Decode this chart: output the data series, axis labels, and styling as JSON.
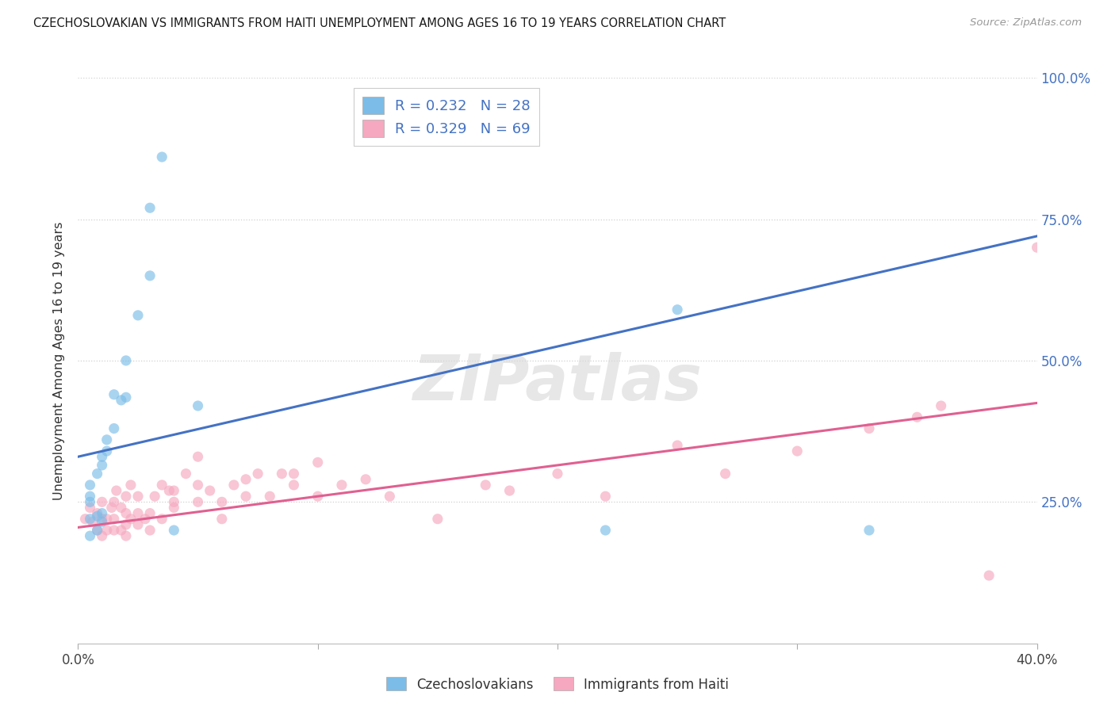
{
  "title": "CZECHOSLOVAKIAN VS IMMIGRANTS FROM HAITI UNEMPLOYMENT AMONG AGES 16 TO 19 YEARS CORRELATION CHART",
  "source": "Source: ZipAtlas.com",
  "ylabel": "Unemployment Among Ages 16 to 19 years",
  "blue_label": "Czechoslovakians",
  "pink_label": "Immigrants from Haiti",
  "blue_R": 0.232,
  "blue_N": 28,
  "pink_R": 0.329,
  "pink_N": 69,
  "blue_color": "#7bbde8",
  "pink_color": "#f5a8bf",
  "blue_line_color": "#4472c4",
  "pink_line_color": "#e06090",
  "watermark": "ZIPatlas",
  "background_color": "#ffffff",
  "grid_color": "#d0d0d0",
  "blue_scatter_x": [
    0.005,
    0.008,
    0.01,
    0.005,
    0.008,
    0.01,
    0.005,
    0.005,
    0.005,
    0.008,
    0.01,
    0.01,
    0.012,
    0.012,
    0.015,
    0.015,
    0.018,
    0.02,
    0.02,
    0.025,
    0.03,
    0.03,
    0.035,
    0.04,
    0.05,
    0.22,
    0.25,
    0.33
  ],
  "blue_scatter_y": [
    0.19,
    0.2,
    0.215,
    0.22,
    0.225,
    0.23,
    0.25,
    0.26,
    0.28,
    0.3,
    0.315,
    0.33,
    0.34,
    0.36,
    0.38,
    0.44,
    0.43,
    0.435,
    0.5,
    0.58,
    0.65,
    0.77,
    0.86,
    0.2,
    0.42,
    0.2,
    0.59,
    0.2
  ],
  "pink_scatter_x": [
    0.003,
    0.005,
    0.006,
    0.008,
    0.008,
    0.01,
    0.01,
    0.01,
    0.012,
    0.012,
    0.014,
    0.015,
    0.015,
    0.015,
    0.016,
    0.018,
    0.018,
    0.02,
    0.02,
    0.02,
    0.02,
    0.022,
    0.022,
    0.025,
    0.025,
    0.025,
    0.028,
    0.03,
    0.03,
    0.032,
    0.035,
    0.035,
    0.038,
    0.04,
    0.04,
    0.04,
    0.045,
    0.05,
    0.05,
    0.05,
    0.055,
    0.06,
    0.06,
    0.065,
    0.07,
    0.07,
    0.075,
    0.08,
    0.085,
    0.09,
    0.09,
    0.1,
    0.1,
    0.11,
    0.12,
    0.13,
    0.15,
    0.17,
    0.18,
    0.2,
    0.22,
    0.25,
    0.27,
    0.3,
    0.33,
    0.35,
    0.36,
    0.38,
    0.4
  ],
  "pink_scatter_y": [
    0.22,
    0.24,
    0.215,
    0.2,
    0.23,
    0.19,
    0.22,
    0.25,
    0.2,
    0.22,
    0.24,
    0.2,
    0.22,
    0.25,
    0.27,
    0.24,
    0.2,
    0.19,
    0.21,
    0.23,
    0.26,
    0.22,
    0.28,
    0.21,
    0.23,
    0.26,
    0.22,
    0.2,
    0.23,
    0.26,
    0.22,
    0.28,
    0.27,
    0.24,
    0.25,
    0.27,
    0.3,
    0.25,
    0.28,
    0.33,
    0.27,
    0.22,
    0.25,
    0.28,
    0.26,
    0.29,
    0.3,
    0.26,
    0.3,
    0.28,
    0.3,
    0.26,
    0.32,
    0.28,
    0.29,
    0.26,
    0.22,
    0.28,
    0.27,
    0.3,
    0.26,
    0.35,
    0.3,
    0.34,
    0.38,
    0.4,
    0.42,
    0.12,
    0.7
  ],
  "blue_trendline_x": [
    0.0,
    0.4
  ],
  "blue_trendline_y": [
    0.33,
    0.72
  ],
  "pink_trendline_x": [
    0.0,
    0.4
  ],
  "pink_trendline_y": [
    0.205,
    0.425
  ],
  "xlim": [
    0.0,
    0.4
  ],
  "ylim": [
    0.0,
    1.0
  ],
  "x_ticks": [
    0.0,
    0.1,
    0.2,
    0.3,
    0.4
  ],
  "y_ticks": [
    0.25,
    0.5,
    0.75,
    1.0
  ],
  "y_tick_labels_right": [
    "25.0%",
    "50.0%",
    "75.0%",
    "100.0%"
  ],
  "marker_size": 90,
  "marker_alpha": 0.65
}
